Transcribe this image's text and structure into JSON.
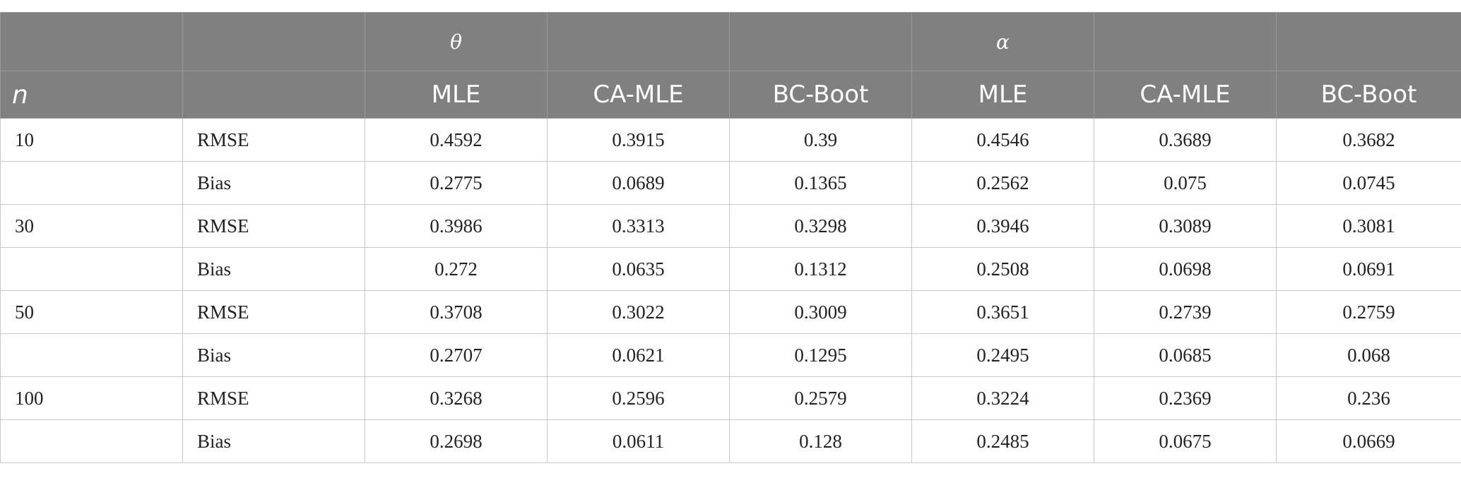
{
  "header": {
    "row1": [
      "",
      "",
      "θ",
      "",
      "",
      "α",
      "",
      ""
    ],
    "row2": [
      "n",
      "",
      "MLE",
      "CA-MLE",
      "BC-Boot",
      "MLE",
      "CA-MLE",
      "BC-Boot"
    ]
  },
  "rows": [
    [
      "10",
      "RMSE",
      "0.4592",
      "0.3915",
      "0.39",
      "0.4546",
      "0.3689",
      "0.3682"
    ],
    [
      "",
      "Bias",
      "0.2775",
      "0.0689",
      "0.1365",
      "0.2562",
      "0.075",
      "0.0745"
    ],
    [
      "30",
      "RMSE",
      "0.3986",
      "0.3313",
      "0.3298",
      "0.3946",
      "0.3089",
      "0.3081"
    ],
    [
      "",
      "Bias",
      "0.272",
      "0.0635",
      "0.1312",
      "0.2508",
      "0.0698",
      "0.0691"
    ],
    [
      "50",
      "RMSE",
      "0.3708",
      "0.3022",
      "0.3009",
      "0.3651",
      "0.2739",
      "0.2759"
    ],
    [
      "",
      "Bias",
      "0.2707",
      "0.0621",
      "0.1295",
      "0.2495",
      "0.0685",
      "0.068"
    ],
    [
      "100",
      "RMSE",
      "0.3268",
      "0.2596",
      "0.2579",
      "0.3224",
      "0.2369",
      "0.236"
    ],
    [
      "",
      "Bias",
      "0.2698",
      "0.0611",
      "0.128",
      "0.2485",
      "0.0675",
      "0.0669"
    ]
  ]
}
